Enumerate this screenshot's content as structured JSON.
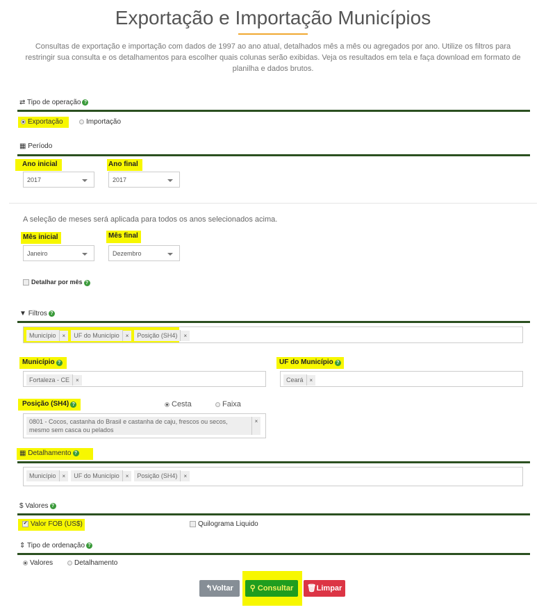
{
  "title": "Exportação e Importação Municípios",
  "description": "Consultas de exportação e importação com dados de 1997 ao ano atual, detalhados mês a mês ou agregados por ano. Utilize os filtros para restringir sua consulta e os detalhamentos para escolher quais colunas serão exibidas. Veja os resultados em tela e faça download em formato de planilha e dados brutos.",
  "operacao": {
    "title": "Tipo de operação",
    "options": [
      "Exportação",
      "Importação"
    ],
    "selected": "Exportação"
  },
  "periodo": {
    "title": "Período",
    "ano_inicial_label": "Ano inicial",
    "ano_inicial": "2017",
    "ano_final_label": "Ano final",
    "ano_final": "2017",
    "note": "A seleção de meses será aplicada para todos os anos selecionados acima.",
    "mes_inicial_label": "Mês inicial",
    "mes_inicial": "Janeiro",
    "mes_final_label": "Mês final",
    "mes_final": "Dezembro",
    "detalhar_label": "Detalhar por mês",
    "detalhar_checked": false
  },
  "filtros": {
    "title": "Filtros",
    "tags": [
      "Município",
      "UF do Município",
      "Posição (SH4)"
    ],
    "municipio_label": "Município",
    "municipio_tags": [
      "Fortaleza - CE"
    ],
    "uf_label": "UF do Município",
    "uf_tags": [
      "Ceará"
    ],
    "posicao_label": "Posição (SH4)",
    "posicao_modes": [
      "Cesta",
      "Faixa"
    ],
    "posicao_mode_selected": "Cesta",
    "posicao_tag": "0801 - Cocos, castanha do Brasil e castanha de caju, frescos ou secos, mesmo sem casca ou pelados"
  },
  "detalhamento": {
    "title": "Detalhamento",
    "tags": [
      "Município",
      "UF do Município",
      "Posição (SH4)"
    ]
  },
  "valores": {
    "title": "Valores",
    "fob_label": "Valor FOB (US$)",
    "fob_checked": true,
    "kg_label": "Quilograma Liquido",
    "kg_checked": false
  },
  "ordenacao": {
    "title": "Tipo de ordenação",
    "options": [
      "Valores",
      "Detalhamento"
    ],
    "selected": "Valores"
  },
  "buttons": {
    "voltar": "Voltar",
    "consultar": "Consultar",
    "limpar": "Limpar"
  },
  "colors": {
    "section_bar": "#2b5020",
    "accent": "#f0a830",
    "consultar": "#1f9d1f",
    "voltar": "#868e96",
    "limpar": "#dc3545",
    "highlight": "#f7f700"
  },
  "remove_glyph": "×"
}
